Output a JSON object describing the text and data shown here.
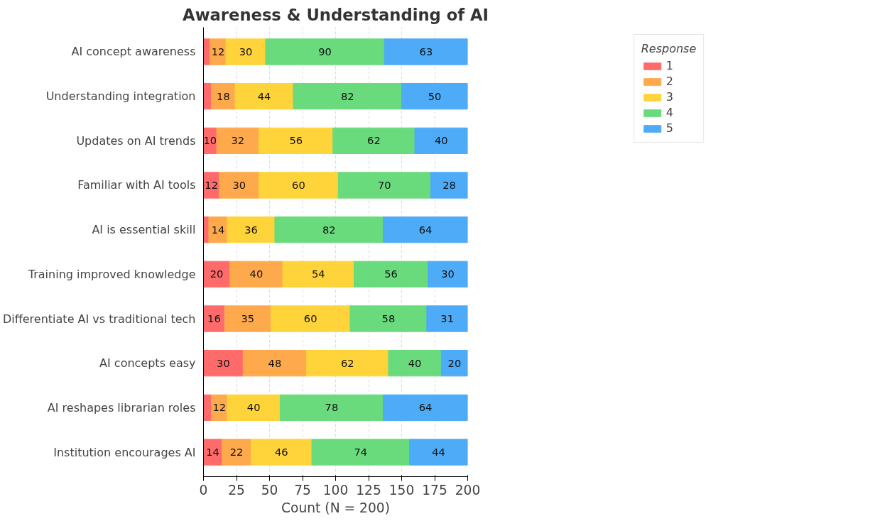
{
  "chart_data": {
    "type": "bar",
    "orientation": "horizontal",
    "stacked": true,
    "title": "Awareness & Understanding of AI",
    "xlabel": "Count (N = 200)",
    "legend_title": "Response",
    "legend": "top right",
    "grid": true,
    "categories": [
      "AI concept awareness",
      "Understanding integration",
      "Updates on AI trends",
      "Familiar with AI tools",
      "AI is essential skill",
      "Training improved knowledge",
      "Differentiate AI vs traditional tech",
      "AI concepts easy",
      "AI reshapes librarian roles",
      "Institution encourages AI"
    ],
    "xlim": [
      0,
      200
    ],
    "xticks": [
      0,
      25,
      50,
      75,
      100,
      125,
      150,
      175,
      200
    ],
    "series": [
      {
        "name": "1",
        "color": "#ff6b6b",
        "values": [
          5,
          6,
          10,
          12,
          4,
          20,
          16,
          30,
          6,
          14
        ],
        "value_labels": [
          null,
          null,
          "10",
          "12",
          null,
          "20",
          "16",
          "30",
          null,
          "14"
        ]
      },
      {
        "name": "2",
        "color": "#ffa94d",
        "values": [
          12,
          18,
          32,
          30,
          14,
          40,
          35,
          48,
          12,
          22
        ],
        "value_labels": [
          "12",
          "18",
          "32",
          "30",
          "14",
          "40",
          "35",
          "48",
          "12",
          "22"
        ]
      },
      {
        "name": "3",
        "color": "#ffd43b",
        "values": [
          30,
          44,
          56,
          60,
          36,
          54,
          60,
          62,
          40,
          46
        ],
        "value_labels": [
          "30",
          "44",
          "56",
          "60",
          "36",
          "54",
          "60",
          "62",
          "40",
          "46"
        ]
      },
      {
        "name": "4",
        "color": "#69db7c",
        "values": [
          90,
          82,
          62,
          70,
          82,
          56,
          58,
          40,
          78,
          74
        ],
        "value_labels": [
          "90",
          "82",
          "62",
          "70",
          "82",
          "56",
          "58",
          "40",
          "78",
          "74"
        ]
      },
      {
        "name": "5",
        "color": "#4dabf7",
        "values": [
          63,
          50,
          40,
          28,
          64,
          30,
          31,
          20,
          64,
          44
        ],
        "value_labels": [
          "63",
          "50",
          "40",
          "28",
          "64",
          "30",
          "31",
          "20",
          "64",
          "44"
        ]
      }
    ]
  }
}
